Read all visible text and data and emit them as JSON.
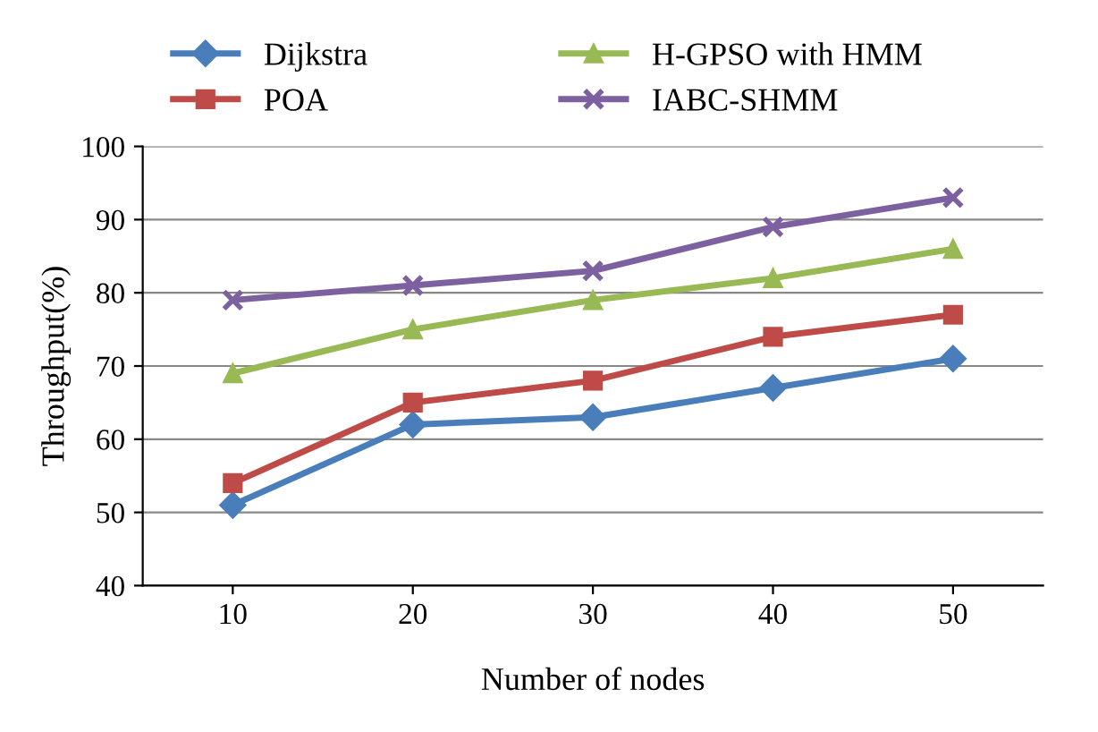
{
  "chart_data": {
    "type": "line",
    "xlabel": "Number of nodes",
    "ylabel": "Throughput(%)",
    "categories": [
      "10",
      "20",
      "30",
      "40",
      "50"
    ],
    "series": [
      {
        "name": "Dijkstra",
        "color": "#4a7ebb",
        "marker": "diamond",
        "values": [
          51,
          62,
          63,
          67,
          71
        ]
      },
      {
        "name": "POA",
        "color": "#be4b48",
        "marker": "square",
        "values": [
          54,
          65,
          68,
          74,
          77
        ]
      },
      {
        "name": "H-GPSO with HMM",
        "color": "#98b954",
        "marker": "triangle",
        "values": [
          69,
          75,
          79,
          82,
          86
        ]
      },
      {
        "name": "IABC-SHMM",
        "color": "#7d60a0",
        "marker": "cross",
        "values": [
          79,
          81,
          83,
          89,
          93
        ]
      }
    ],
    "ylim": [
      40,
      100
    ],
    "yticks": [
      40,
      50,
      60,
      70,
      80,
      90,
      100
    ],
    "grid": "y",
    "legend": "top",
    "line_style": "solid"
  }
}
